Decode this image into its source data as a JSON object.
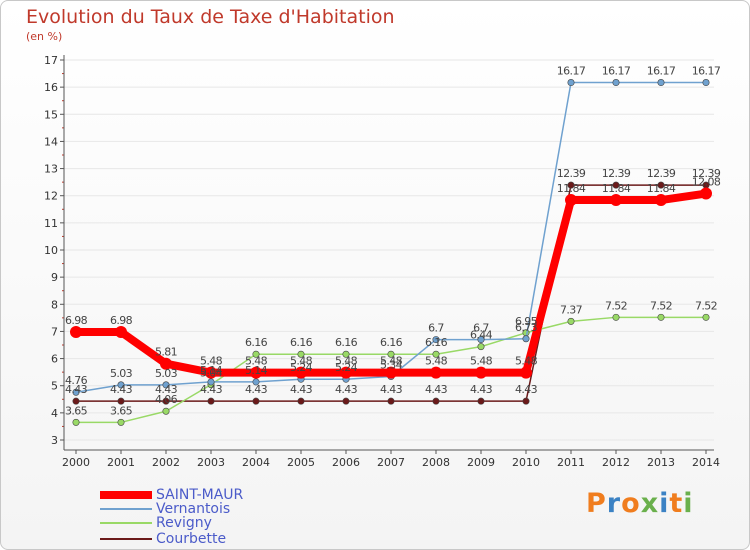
{
  "title": "Evolution du Taux de Taxe d'Habitation",
  "subtitle": "(en %)",
  "logo_text": "Proxiti",
  "colors": {
    "title": "#c0392b",
    "axis": "#333333",
    "grid": "#e7e7e7",
    "legend_text": "#4b5bc9"
  },
  "chart_data": {
    "type": "line",
    "title": "Evolution du Taux de Taxe d'Habitation",
    "ylabel": "(en %)",
    "xlabel": "",
    "ylim": [
      3,
      17
    ],
    "yticks": [
      3,
      4,
      5,
      6,
      7,
      8,
      9,
      10,
      11,
      12,
      13,
      14,
      15,
      16,
      17
    ],
    "x": [
      "2000",
      "2001",
      "2002",
      "2003",
      "2004",
      "2005",
      "2006",
      "2007",
      "2008",
      "2009",
      "2010",
      "2011",
      "2012",
      "2013",
      "2014"
    ],
    "legend_position": "bottom-left",
    "series": [
      {
        "name": "Courbette",
        "color": "#6b1a1a",
        "values": [
          4.43,
          4.43,
          4.43,
          4.43,
          4.43,
          4.43,
          4.43,
          4.43,
          4.43,
          4.43,
          4.43,
          12.39,
          12.39,
          12.39,
          12.39
        ],
        "labels": [
          "4.43",
          "4.43",
          "4.43",
          "4.43",
          "4.43",
          "4.43",
          "4.43",
          "4.43",
          "4.43",
          "4.43",
          "4.43",
          "12.39",
          "12.39",
          "12.39",
          "12.39"
        ]
      },
      {
        "name": "Revigny",
        "color": "#99d966",
        "values": [
          3.65,
          3.65,
          4.06,
          5.04,
          6.16,
          6.16,
          6.16,
          6.16,
          6.16,
          6.44,
          6.95,
          7.37,
          7.52,
          7.52,
          7.52
        ],
        "labels": [
          "3.65",
          "3.65",
          "4.06",
          "5.04",
          "6.16",
          "6.16",
          "6.16",
          "6.16",
          "6.16",
          "6.44",
          "6.95",
          "7.37",
          "7.52",
          "7.52",
          "7.52"
        ]
      },
      {
        "name": "Vernantois",
        "color": "#6fa1cf",
        "values": [
          4.76,
          5.03,
          5.03,
          5.14,
          5.14,
          5.24,
          5.24,
          5.34,
          6.7,
          6.7,
          6.73,
          16.17,
          16.17,
          16.17,
          16.17
        ],
        "labels": [
          "4.76",
          "5.03",
          "5.03",
          "5.14",
          "5.14",
          "5.24",
          "5.24",
          "5.34",
          "6.7",
          "6.7",
          "6.73",
          "16.17",
          "16.17",
          "16.17",
          "16.17"
        ]
      },
      {
        "name": "SAINT-MAUR",
        "color": "#ff0000",
        "values": [
          6.98,
          6.98,
          5.81,
          5.48,
          5.48,
          5.48,
          5.48,
          5.48,
          5.48,
          5.48,
          5.48,
          11.84,
          11.84,
          11.84,
          12.08
        ],
        "labels": [
          "6.98",
          "6.98",
          "5.81",
          "5.48",
          "5.48",
          "5.48",
          "5.48",
          "5.48",
          "5.48",
          "5.48",
          "5.48",
          "11.84",
          "11.84",
          "11.84",
          "12.08"
        ]
      }
    ],
    "legend": [
      "SAINT-MAUR",
      "Vernantois",
      "Revigny",
      "Courbette"
    ]
  }
}
